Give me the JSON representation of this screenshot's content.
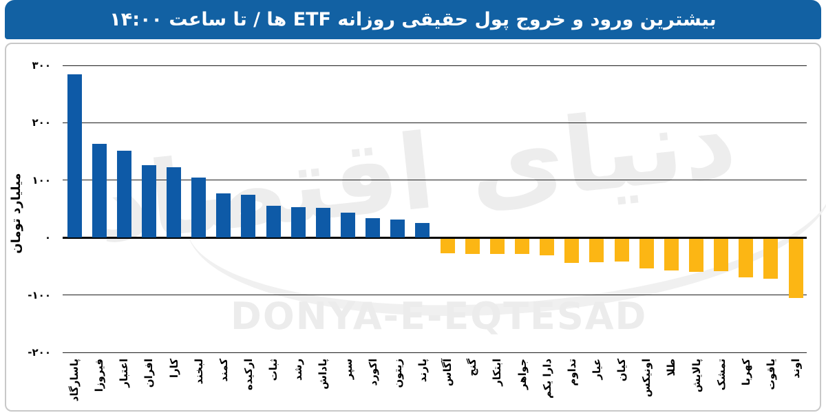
{
  "title": "بیشترین ورود و خروج پول حقیقی روزانه ETF ها / تا ساعت ۱۴:۰۰",
  "y_axis": {
    "title": "میلیارد تومان",
    "ticks": [
      {
        "label": "۳۰۰",
        "value": 300
      },
      {
        "label": "۲۰۰",
        "value": 200
      },
      {
        "label": "۱۰۰",
        "value": 100
      },
      {
        "label": "۰",
        "value": 0
      },
      {
        "label": "-۱۰۰",
        "value": -100
      },
      {
        "label": "-۲۰۰",
        "value": -200
      }
    ]
  },
  "watermark": {
    "persian": "دنیای اقتصاد",
    "latin": "DONYA-E-EQTESAD"
  },
  "chart_data": {
    "type": "bar",
    "title": "بیشترین ورود و خروج پول حقیقی روزانه ETF ها / تا ساعت ۱۴:۰۰",
    "xlabel": "",
    "ylabel": "میلیارد تومان",
    "ylim": [
      -200,
      300
    ],
    "grid": "horizontal",
    "categories": [
      "پاسارگاد",
      "فیروزا",
      "اعتبار",
      "افران",
      "کارا",
      "لبخند",
      "کمند",
      "ارکیده",
      "ثبات",
      "رشد",
      "پاداش",
      "سپر",
      "اکورد",
      "زیتون",
      "پارند",
      "آگاس",
      "گنج",
      "ابتکار",
      "جواهر",
      "دارا یکم",
      "تداوم",
      "عیار",
      "کیان",
      "اونیکس",
      "طلا",
      "پالایش",
      "تمشک",
      "کهربا",
      "یاقوت",
      "اوند"
    ],
    "values": [
      284,
      163,
      151,
      126,
      123,
      105,
      77,
      75,
      55,
      53,
      52,
      44,
      34,
      31,
      26,
      -26,
      -27,
      -27,
      -27,
      -29,
      -42,
      -41,
      -40,
      -52,
      -55,
      -58,
      -57,
      -67,
      -70,
      -104
    ],
    "colors": {
      "positive": "#0e5aa7",
      "negative": "#fcb614",
      "header": "#1261a3",
      "gridline": "#1c1c1c",
      "axis": "#000000",
      "watermark": "#ededed"
    }
  }
}
